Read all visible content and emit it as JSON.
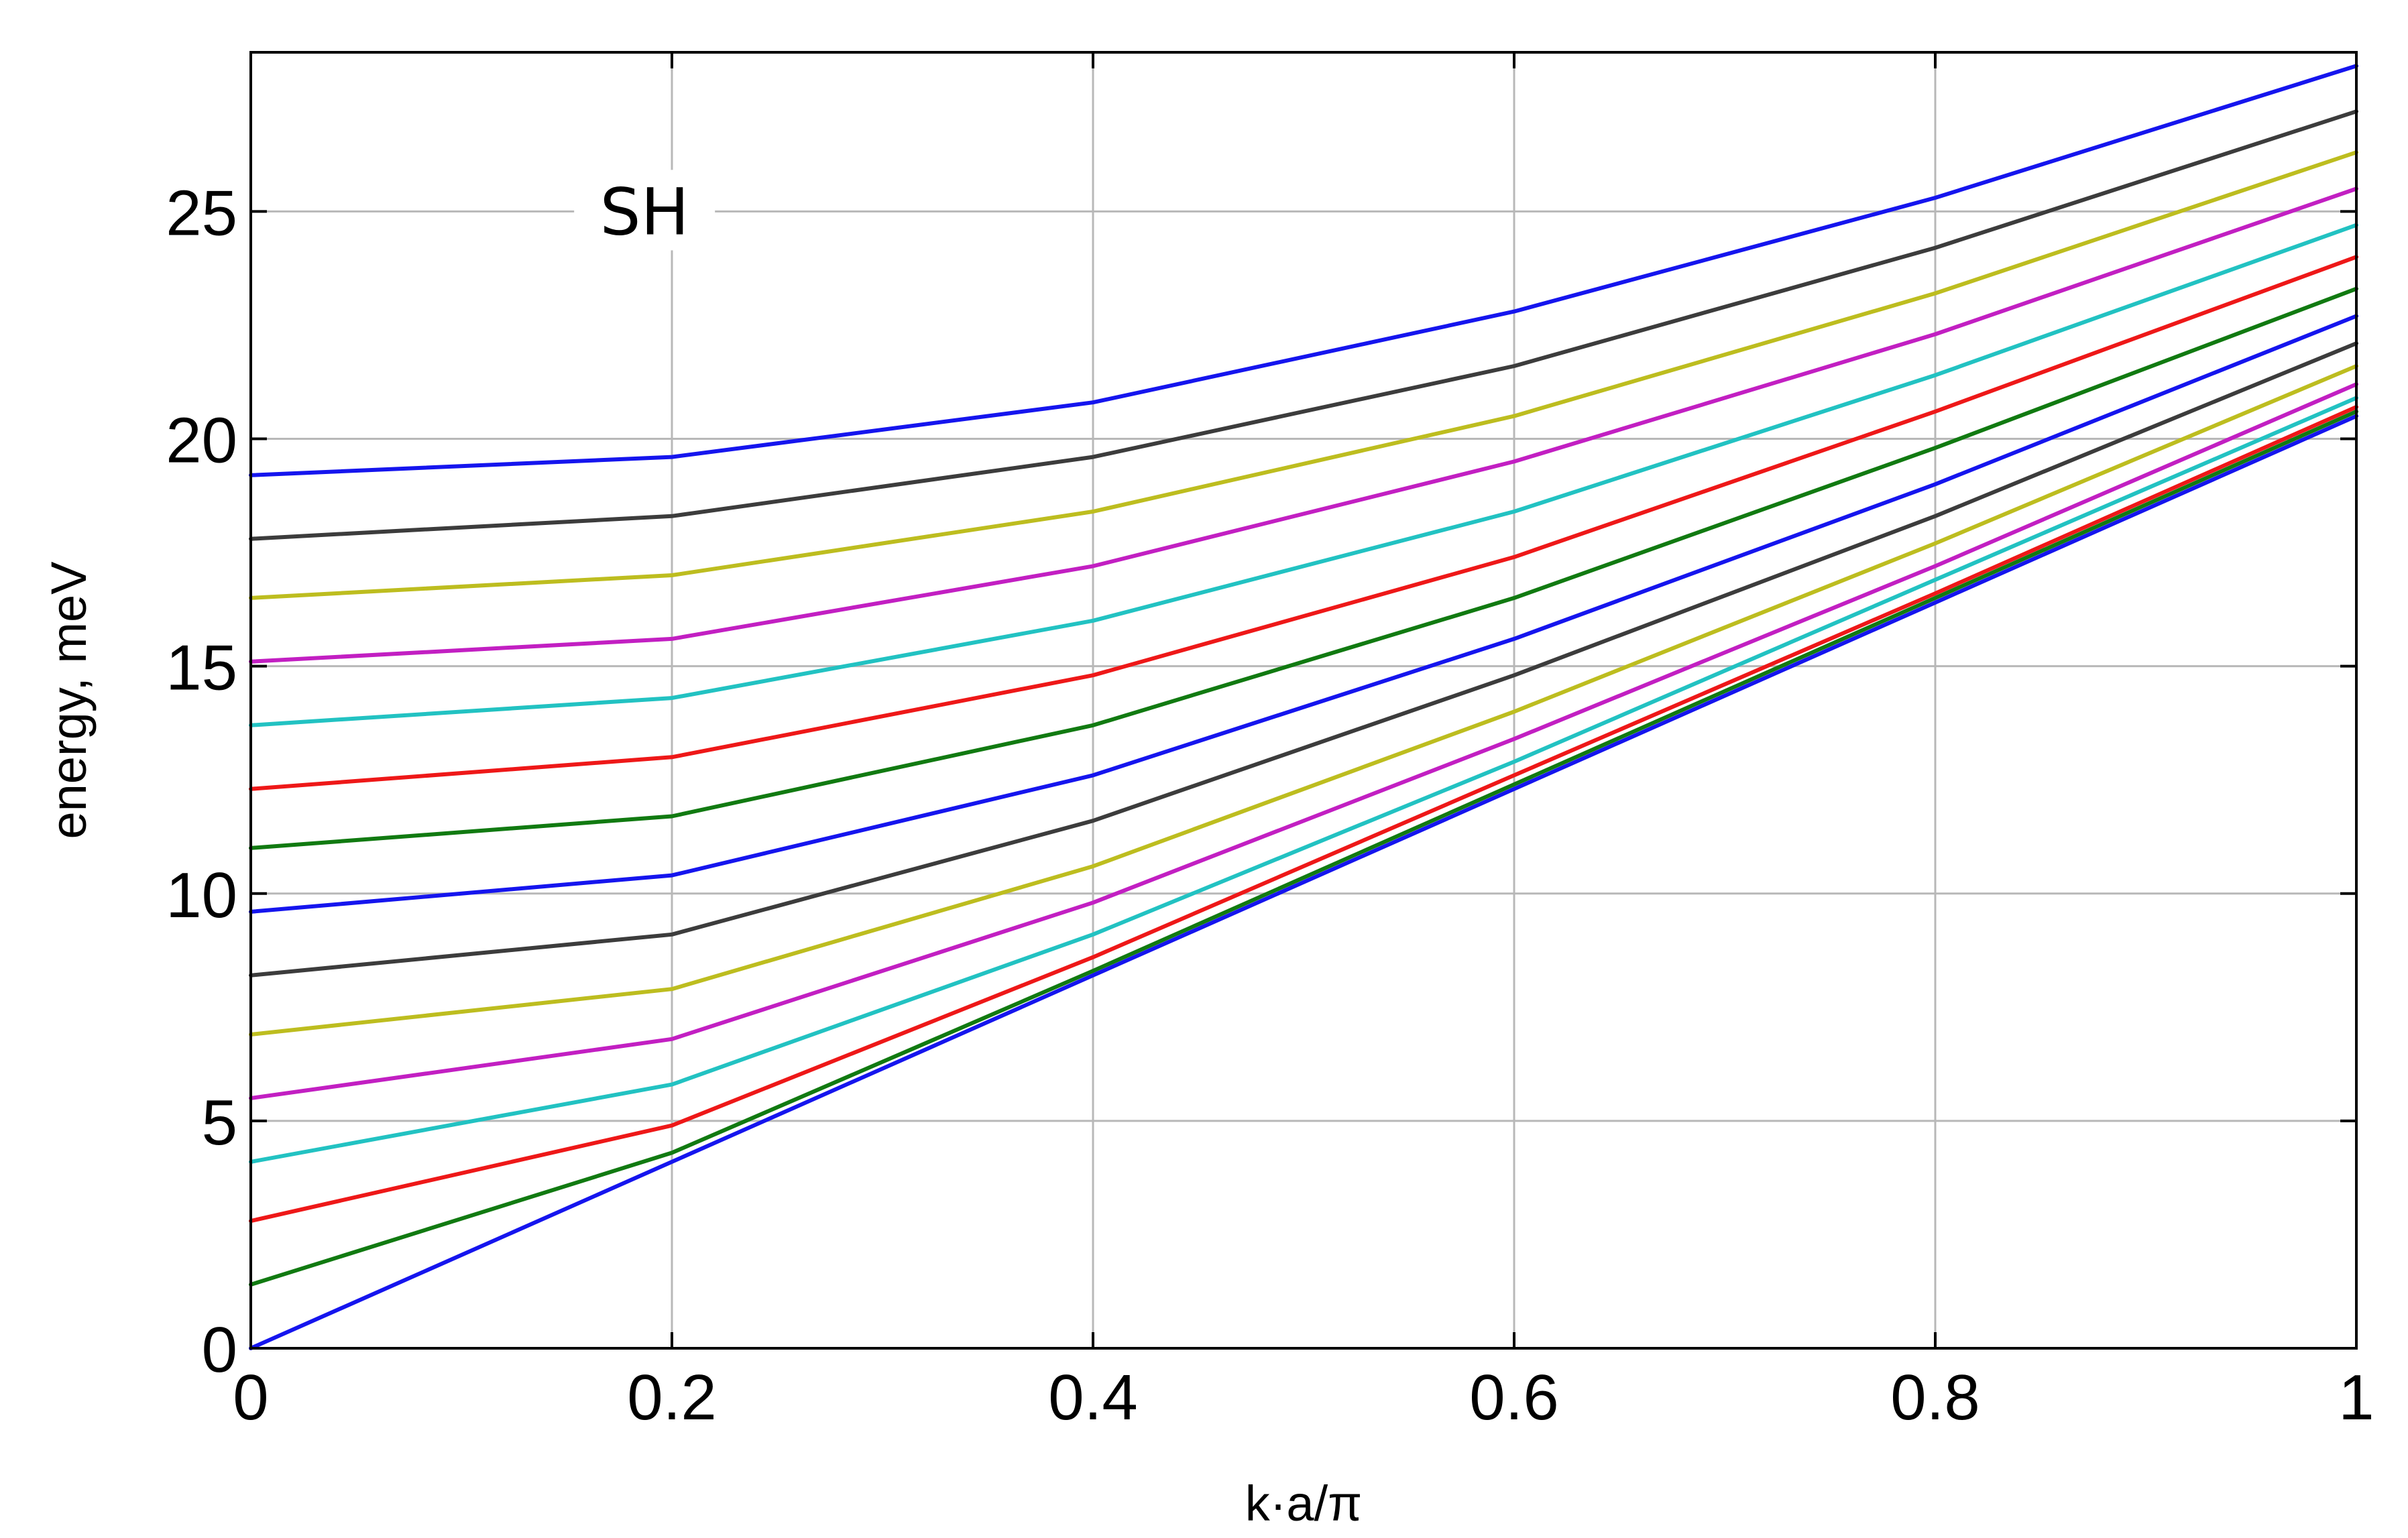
{
  "chart_data": {
    "type": "line",
    "xlabel": "k·a/π",
    "ylabel": "energy, meV",
    "annotation": "SH",
    "xlim": [
      0,
      1
    ],
    "ylim": [
      0,
      28.5
    ],
    "xticks": [
      0,
      0.2,
      0.4,
      0.6,
      0.8,
      1
    ],
    "xtick_labels": [
      "0",
      "0.2",
      "0.4",
      "0.6",
      "0.8",
      "1"
    ],
    "yticks": [
      0,
      5,
      10,
      15,
      20,
      25
    ],
    "ytick_labels": [
      "0",
      "5",
      "10",
      "15",
      "20",
      "25"
    ],
    "grid": true,
    "colors": {
      "blue": "#1515ee",
      "green": "#117a11",
      "red": "#ee1818",
      "cyan": "#22c2c2",
      "magenta": "#c21fc2",
      "yellow": "#bdbd1f",
      "gray": "#3c3c3c",
      "grid": "#b8b8b8",
      "axes": "#000000"
    },
    "series": [
      {
        "color": "#1515ee",
        "x": [
          0,
          0.2,
          0.4,
          0.6,
          0.8,
          1
        ],
        "values": [
          0,
          4.1,
          8.2,
          12.3,
          16.4,
          20.5
        ]
      },
      {
        "color": "#117a11",
        "x": [
          0,
          0.2,
          0.4,
          0.6,
          0.8,
          1
        ],
        "values": [
          1.4,
          4.3,
          8.3,
          12.4,
          16.5,
          20.6
        ]
      },
      {
        "color": "#ee1818",
        "x": [
          0,
          0.2,
          0.4,
          0.6,
          0.8,
          1
        ],
        "values": [
          2.8,
          4.9,
          8.6,
          12.6,
          16.6,
          20.7
        ]
      },
      {
        "color": "#22c2c2",
        "x": [
          0,
          0.2,
          0.4,
          0.6,
          0.8,
          1
        ],
        "values": [
          4.1,
          5.8,
          9.1,
          12.9,
          16.9,
          20.9
        ]
      },
      {
        "color": "#c21fc2",
        "x": [
          0,
          0.2,
          0.4,
          0.6,
          0.8,
          1
        ],
        "values": [
          5.5,
          6.8,
          9.8,
          13.4,
          17.2,
          21.2
        ]
      },
      {
        "color": "#bdbd1f",
        "x": [
          0,
          0.2,
          0.4,
          0.6,
          0.8,
          1
        ],
        "values": [
          6.9,
          7.9,
          10.6,
          14.0,
          17.7,
          21.6
        ]
      },
      {
        "color": "#3c3c3c",
        "x": [
          0,
          0.2,
          0.4,
          0.6,
          0.8,
          1
        ],
        "values": [
          8.2,
          9.1,
          11.6,
          14.8,
          18.3,
          22.1
        ]
      },
      {
        "color": "#1515ee",
        "x": [
          0,
          0.2,
          0.4,
          0.6,
          0.8,
          1
        ],
        "values": [
          9.6,
          10.4,
          12.6,
          15.6,
          19.0,
          22.7
        ]
      },
      {
        "color": "#117a11",
        "x": [
          0,
          0.2,
          0.4,
          0.6,
          0.8,
          1
        ],
        "values": [
          11.0,
          11.7,
          13.7,
          16.5,
          19.8,
          23.3
        ]
      },
      {
        "color": "#ee1818",
        "x": [
          0,
          0.2,
          0.4,
          0.6,
          0.8,
          1
        ],
        "values": [
          12.3,
          13.0,
          14.8,
          17.4,
          20.6,
          24.0
        ]
      },
      {
        "color": "#22c2c2",
        "x": [
          0,
          0.2,
          0.4,
          0.6,
          0.8,
          1
        ],
        "values": [
          13.7,
          14.3,
          16.0,
          18.4,
          21.4,
          24.7
        ]
      },
      {
        "color": "#c21fc2",
        "x": [
          0,
          0.2,
          0.4,
          0.6,
          0.8,
          1
        ],
        "values": [
          15.1,
          15.6,
          17.2,
          19.5,
          22.3,
          25.5
        ]
      },
      {
        "color": "#bdbd1f",
        "x": [
          0,
          0.2,
          0.4,
          0.6,
          0.8,
          1
        ],
        "values": [
          16.5,
          17.0,
          18.4,
          20.5,
          23.2,
          26.3
        ]
      },
      {
        "color": "#3c3c3c",
        "x": [
          0,
          0.2,
          0.4,
          0.6,
          0.8,
          1
        ],
        "values": [
          17.8,
          18.3,
          19.6,
          21.6,
          24.2,
          27.2
        ]
      },
      {
        "color": "#1515ee",
        "x": [
          0,
          0.2,
          0.4,
          0.6,
          0.8,
          1
        ],
        "values": [
          19.2,
          19.6,
          20.8,
          22.8,
          25.3,
          28.2
        ]
      }
    ]
  }
}
